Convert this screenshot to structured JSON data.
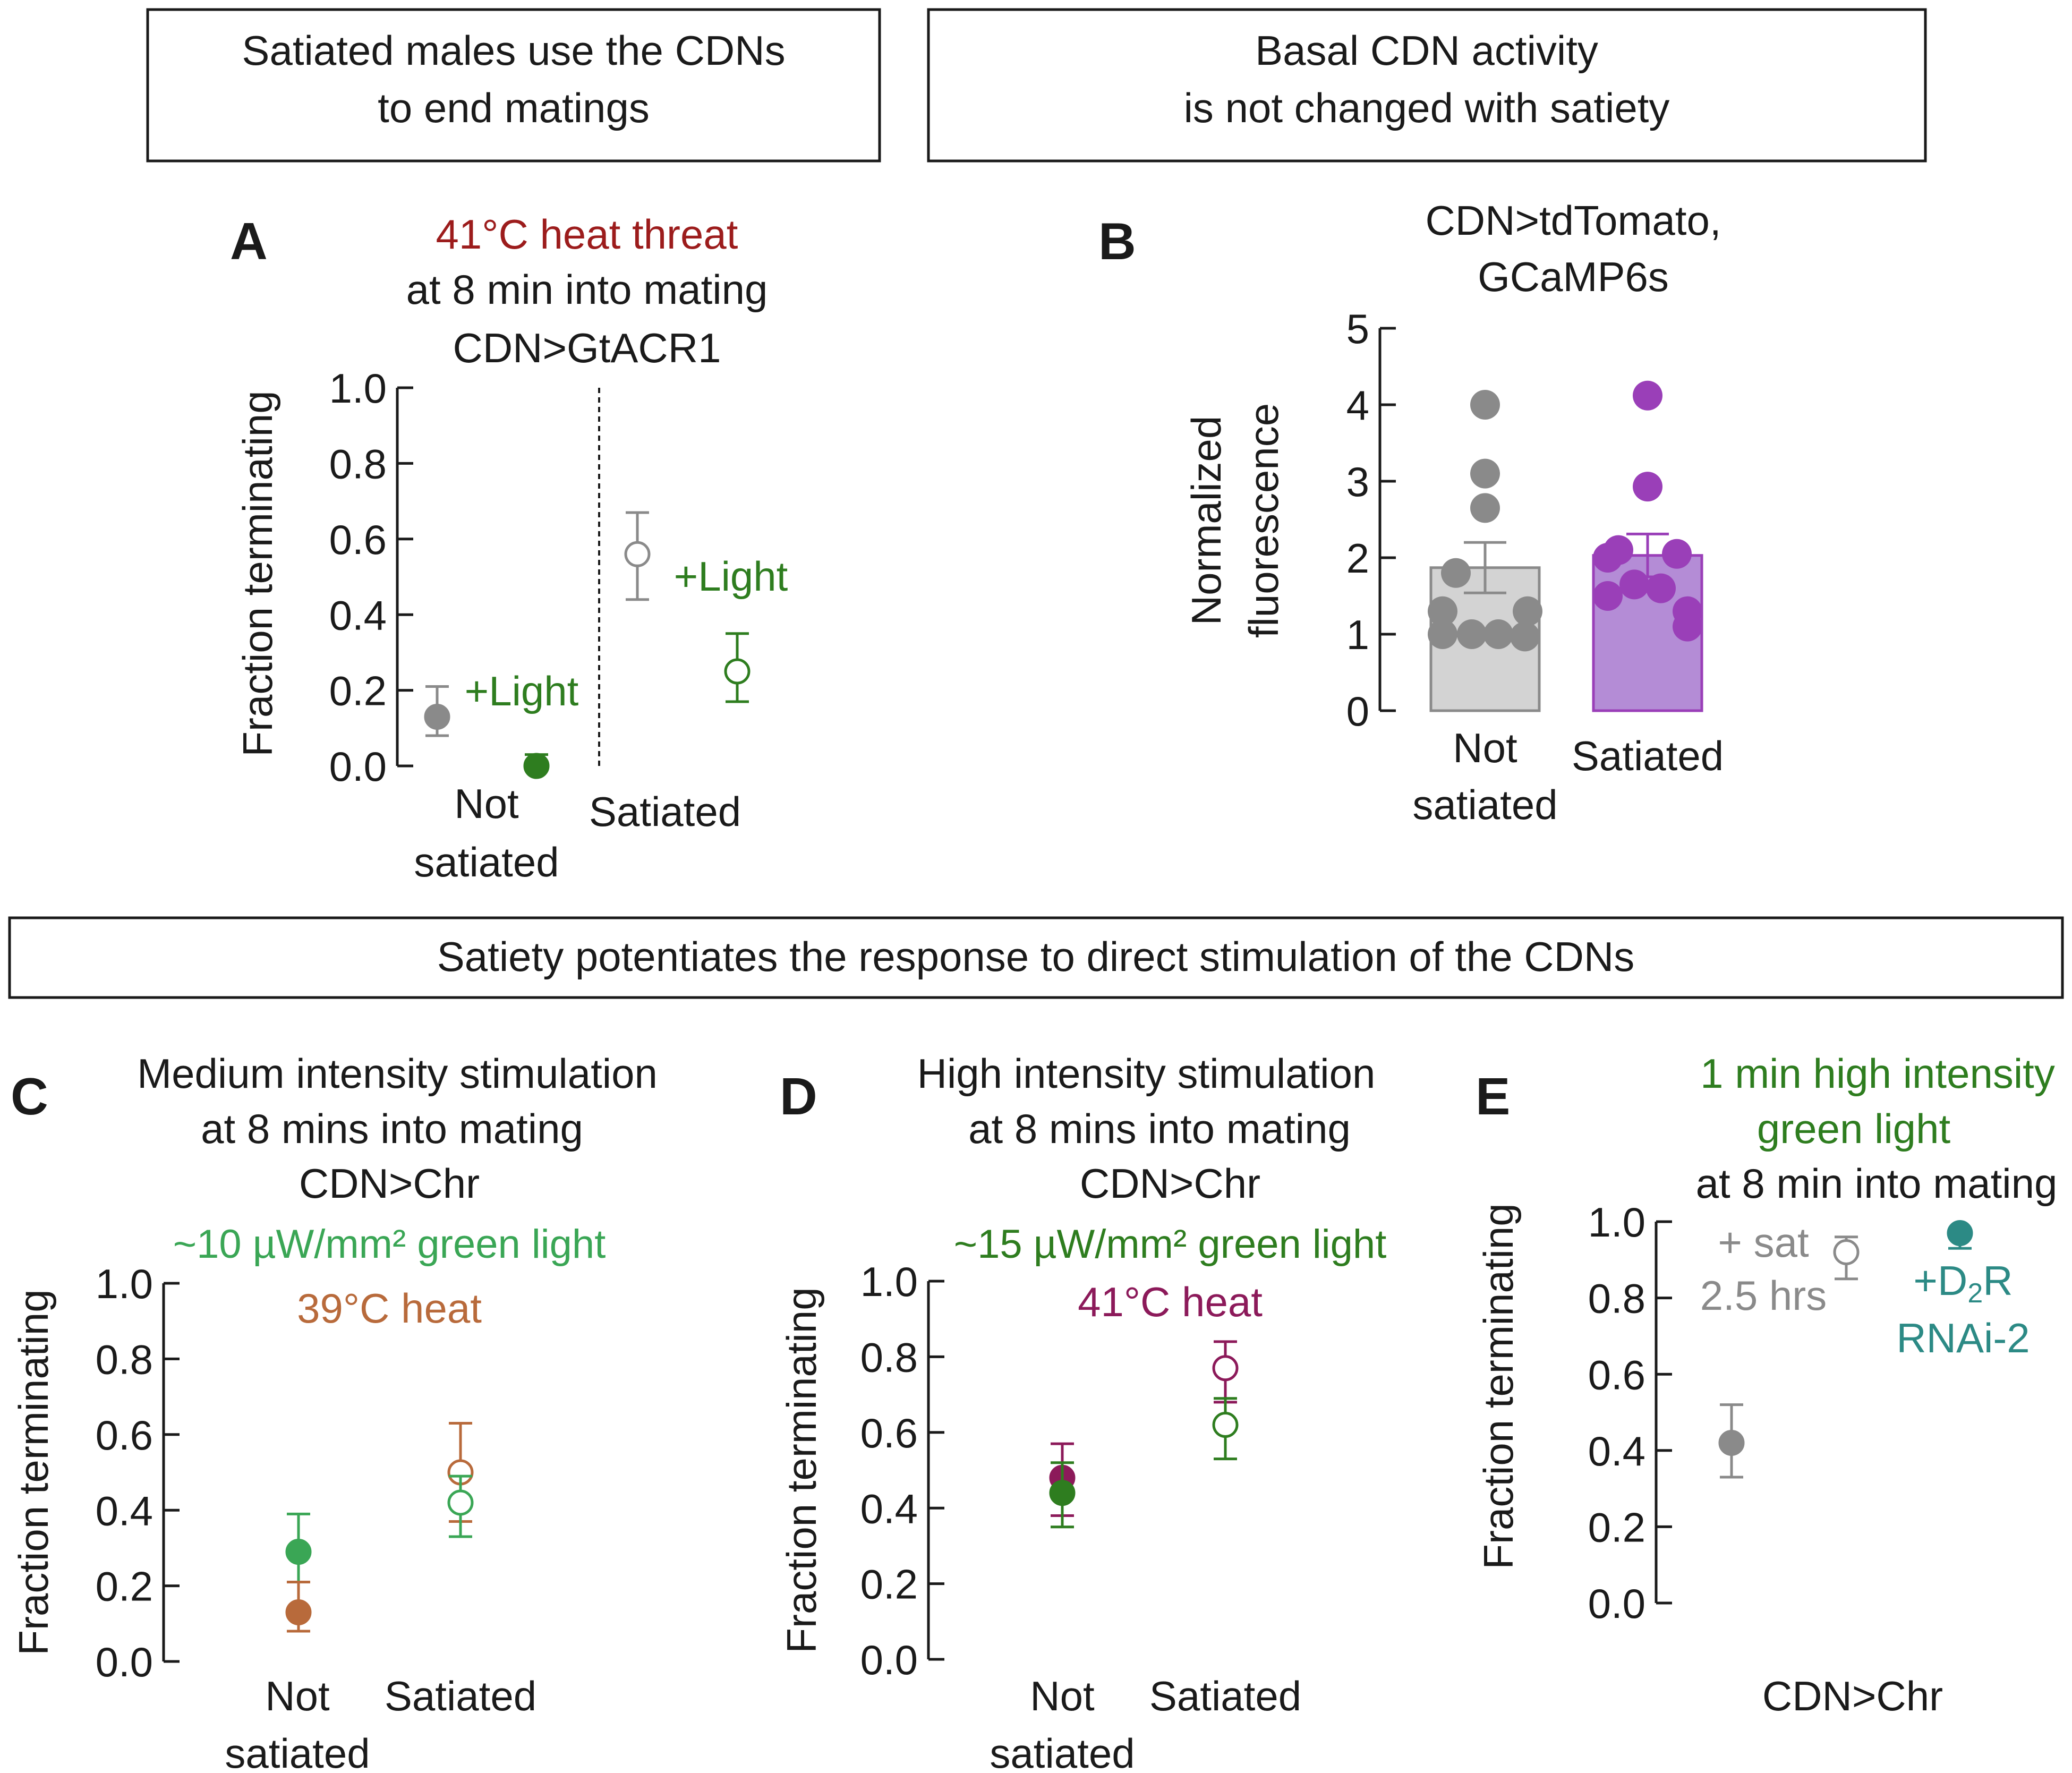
{
  "colors": {
    "black": "#1a1a1a",
    "gray": "#8a8a8a",
    "darkgreen": "#2e7d1f",
    "brightgreen": "#3aa655",
    "heatred": "#9c1c1c",
    "orange": "#b86a3b",
    "magenta": "#8c1a5a",
    "purple": "#9a3fb8",
    "teal": "#2c8a85",
    "barGray": "#d3d3d3",
    "barPurple": "#b48cd6"
  },
  "boxes": {
    "box1": [
      "Satiated males use the CDNs",
      "to end matings"
    ],
    "box2": [
      "Basal CDN activity",
      "is not changed with satiety"
    ],
    "box3": "Satiety potentiates the response to direct stimulation of the CDNs"
  },
  "chart_data": [
    {
      "panel": "A",
      "type": "scatter",
      "title_lines": [
        "41°C heat threat",
        "at 8 min into mating",
        "CDN>GtACR1"
      ],
      "ylabel": "Fraction terminating",
      "ylim": [
        0,
        1
      ],
      "yticks": [
        "0.0",
        "0.2",
        "0.4",
        "0.6",
        "0.8",
        "1.0"
      ],
      "categories": [
        [
          "Not",
          "satiated"
        ],
        [
          "Satiated"
        ]
      ],
      "annotations": [
        "+Light",
        "+Light"
      ],
      "points": [
        {
          "name": "Not satiated",
          "y": 0.13,
          "err": [
            0.08,
            0.21
          ],
          "filled": true,
          "color": "gray"
        },
        {
          "name": "Not satiated +Light",
          "y": 0.0,
          "err": [
            0.0,
            0.03
          ],
          "filled": true,
          "color": "darkgreen"
        },
        {
          "name": "Satiated",
          "y": 0.56,
          "err": [
            0.44,
            0.67
          ],
          "filled": false,
          "color": "gray"
        },
        {
          "name": "Satiated +Light",
          "y": 0.25,
          "err": [
            0.17,
            0.35
          ],
          "filled": false,
          "color": "darkgreen"
        }
      ]
    },
    {
      "panel": "B",
      "type": "bar",
      "title_lines": [
        "CDN>tdTomato,",
        "GCaMP6s"
      ],
      "ylabel_lines": [
        "Normalized",
        "fluorescence"
      ],
      "ylim": [
        0,
        5
      ],
      "yticks": [
        "0",
        "1",
        "2",
        "3",
        "4",
        "5"
      ],
      "categories": [
        [
          "Not",
          "satiated"
        ],
        [
          "Satiated"
        ]
      ],
      "bars": [
        {
          "name": "Not satiated",
          "mean": 1.87,
          "sem": 0.33,
          "color": "gray",
          "points": [
            4.0,
            3.1,
            2.65,
            1.8,
            1.3,
            1.3,
            1.0,
            1.0,
            1.0,
            0.97
          ]
        },
        {
          "name": "Satiated",
          "mean": 2.03,
          "sem": 0.28,
          "color": "purple",
          "points": [
            4.12,
            2.93,
            2.1,
            2.05,
            2.0,
            1.65,
            1.6,
            1.5,
            1.3,
            1.1
          ]
        }
      ]
    },
    {
      "panel": "C",
      "type": "scatter",
      "title_lines": [
        "Medium intensity stimulation",
        "at 8 mins into mating",
        "CDN>Chr"
      ],
      "legend_lines": [
        {
          "text": "~10 µW/mm² green light",
          "color": "brightgreen"
        },
        {
          "text": "39°C heat",
          "color": "orange"
        }
      ],
      "ylabel": "Fraction terminating",
      "ylim": [
        0,
        1
      ],
      "yticks": [
        "0.0",
        "0.2",
        "0.4",
        "0.6",
        "0.8",
        "1.0"
      ],
      "categories": [
        [
          "Not",
          "satiated"
        ],
        [
          "Satiated"
        ]
      ],
      "points": [
        {
          "name": "Not satiated light",
          "y": 0.29,
          "err": [
            0.21,
            0.39
          ],
          "filled": true,
          "color": "brightgreen"
        },
        {
          "name": "Not satiated heat",
          "y": 0.13,
          "err": [
            0.08,
            0.21
          ],
          "filled": true,
          "color": "orange"
        },
        {
          "name": "Satiated heat",
          "y": 0.5,
          "err": [
            0.37,
            0.63
          ],
          "filled": false,
          "color": "orange"
        },
        {
          "name": "Satiated light",
          "y": 0.42,
          "err": [
            0.33,
            0.49
          ],
          "filled": false,
          "color": "brightgreen"
        }
      ]
    },
    {
      "panel": "D",
      "type": "scatter",
      "title_lines": [
        "High intensity stimulation",
        "at 8 mins into mating",
        "CDN>Chr"
      ],
      "legend_lines": [
        {
          "text": "~15 µW/mm² green light",
          "color": "darkgreen"
        },
        {
          "text": "41°C heat",
          "color": "magenta"
        }
      ],
      "ylabel": "Fraction terminating",
      "ylim": [
        0,
        1
      ],
      "yticks": [
        "0.0",
        "0.2",
        "0.4",
        "0.6",
        "0.8",
        "1.0"
      ],
      "categories": [
        [
          "Not",
          "satiated"
        ],
        [
          "Satiated"
        ]
      ],
      "points": [
        {
          "name": "Not satiated heat",
          "y": 0.48,
          "err": [
            0.38,
            0.57
          ],
          "filled": true,
          "color": "magenta"
        },
        {
          "name": "Not satiated light",
          "y": 0.44,
          "err": [
            0.35,
            0.52
          ],
          "filled": true,
          "color": "darkgreen"
        },
        {
          "name": "Satiated heat",
          "y": 0.77,
          "err": [
            0.68,
            0.84
          ],
          "filled": false,
          "color": "magenta"
        },
        {
          "name": "Satiated light",
          "y": 0.62,
          "err": [
            0.53,
            0.69
          ],
          "filled": false,
          "color": "darkgreen"
        }
      ]
    },
    {
      "panel": "E",
      "type": "scatter",
      "title_lines": [
        {
          "text": "1 min high intensity",
          "color": "darkgreen"
        },
        {
          "text": "green light",
          "color": "darkgreen"
        },
        {
          "text": "at 8 min into mating",
          "color": "black"
        }
      ],
      "ylabel": "Fraction terminating",
      "ylim": [
        0,
        1
      ],
      "yticks": [
        "0.0",
        "0.2",
        "0.4",
        "0.6",
        "0.8",
        "1.0"
      ],
      "xlabel": "CDN>Chr",
      "annotations": {
        "sat": [
          "+ sat",
          "2.5 hrs"
        ],
        "rnai": {
          "prefix": "+D",
          "sub": "2",
          "suffix": "R",
          "line2": "RNAi-2"
        }
      },
      "points": [
        {
          "name": "CDN>Chr",
          "y": 0.42,
          "err": [
            0.33,
            0.52
          ],
          "filled": true,
          "color": "gray"
        },
        {
          "name": "+ sat 2.5 hrs",
          "y": 0.92,
          "err": [
            0.85,
            0.96
          ],
          "filled": false,
          "color": "gray"
        },
        {
          "name": "+D2R RNAi-2",
          "y": 0.97,
          "err": [
            0.93,
            0.97
          ],
          "filled": true,
          "color": "teal"
        }
      ]
    }
  ]
}
